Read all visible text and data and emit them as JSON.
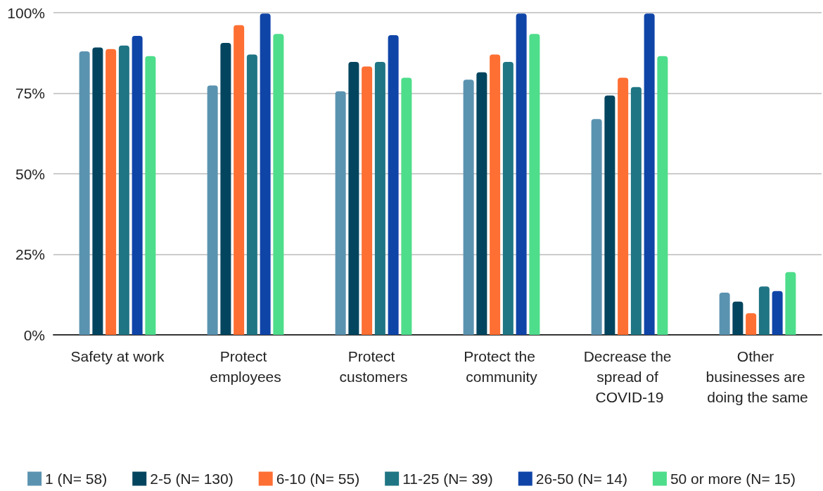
{
  "chart_data": {
    "type": "bar",
    "categories": [
      "Safety at work",
      "Protect employees",
      "Protect customers",
      "Protect the community",
      "Decrease the spread of COVID-19",
      "Other businesses are doing the same"
    ],
    "series": [
      {
        "name": "1 (N= 58)",
        "color": "#5a93b0",
        "values": [
          88,
          77.4,
          75.6,
          79.2,
          67,
          13.1
        ]
      },
      {
        "name": "2-5 (N= 130)",
        "color": "#03455f",
        "values": [
          89.2,
          90.6,
          84.7,
          81.5,
          74.3,
          10.3
        ]
      },
      {
        "name": "6-10 (N= 55)",
        "color": "#fe6f33",
        "values": [
          88.7,
          96.1,
          83.3,
          87,
          79.8,
          6.7
        ]
      },
      {
        "name": "11-25 (N= 39)",
        "color": "#1f7584",
        "values": [
          89.8,
          87,
          84.7,
          84.7,
          76.9,
          15
        ]
      },
      {
        "name": "26-50 (N= 14)",
        "color": "#1045a8",
        "values": [
          92.8,
          99.7,
          93,
          99.7,
          99.7,
          13.6
        ]
      },
      {
        "name": "50 or more (N= 15)",
        "color": "#4edd8b",
        "values": [
          86.5,
          93.4,
          79.8,
          93.4,
          86.5,
          19.5
        ]
      }
    ],
    "ylim": [
      0,
      100
    ],
    "yticks": [
      {
        "value": 0,
        "label": "0%"
      },
      {
        "value": 25,
        "label": "25%"
      },
      {
        "value": 50,
        "label": "50%"
      },
      {
        "value": 75,
        "label": "75%"
      },
      {
        "value": 100,
        "label": "100%"
      }
    ],
    "grid": "y",
    "legend": "bottom"
  }
}
